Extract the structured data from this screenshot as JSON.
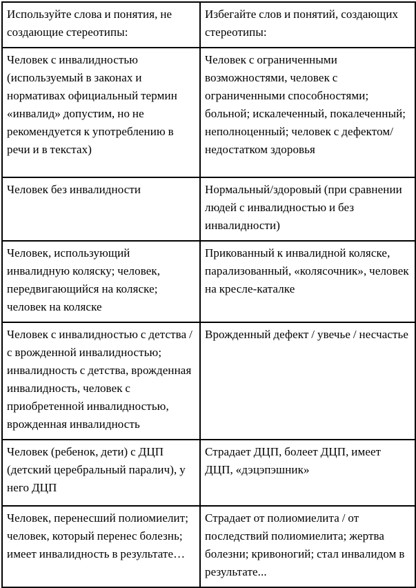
{
  "table": {
    "header": {
      "use": "Используйте слова и понятия, не создающие стереотипы:",
      "avoid": "Избегайте слов и понятий, создающих стереотипы:"
    },
    "rows": [
      {
        "use": "Человек с инвалидностью (используемый в законах и нормативах официальный термин «инвалид» допустим, но не рекомендуется к употреблению в речи и в текстах)",
        "avoid": "Человек с ограниченными возможностями, человек с ограниченными способностями; больной; искалеченный, покалеченный; неполноценный; человек с дефектом/недостатком здоровья"
      },
      {
        "use": "Человек без инвалидности",
        "avoid": "Нормальный/здоровый (при сравнении людей с инвалидностью и без инвалидности)"
      },
      {
        "use": "Человек, использующий инвалидную коляску; человек, передвигающийся на коляске; человек на коляске",
        "avoid": "Прикованный к инвалидной коляске, парализованный, «колясочник», человек на кресле-каталке"
      },
      {
        "use": "Человек с инвалидностью с детства / с врожденной инвалидностью; инвалидность с детства, врожденная инвалидность, человек с приобретенной инвалидностью, врожденная инвалидность",
        "avoid": "Врожденный дефект / увечье / несчастье"
      },
      {
        "use": "Человек (ребенок, дети) с ДЦП (детский церебральный паралич), у него ДЦП",
        "avoid": "Страдает ДЦП, болеет ДЦП, имеет ДЦП, «дэцэпэшник»"
      },
      {
        "use": "Человек, перенесший полиомиелит; человек, который перенес болезнь; имеет инвалидность в результате…",
        "avoid": "Страдает от полиомиелита / от последствий полиомиелита; жертва болезни; кривоногий; стал инвалидом в результате..."
      }
    ],
    "colors": {
      "text": "#000000",
      "border": "#000000",
      "background": "#ffffff"
    }
  }
}
